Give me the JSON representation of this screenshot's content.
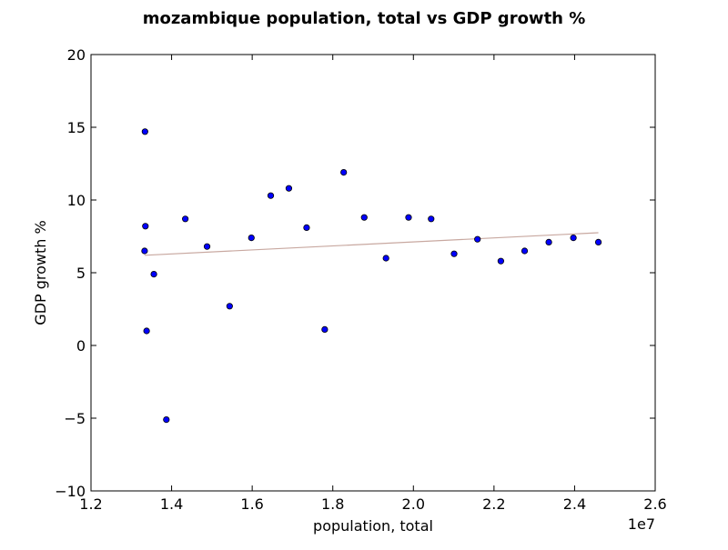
{
  "chart_data": {
    "type": "scatter",
    "title": "mozambique population, total vs GDP growth %",
    "xlabel": "population, total",
    "ylabel": "GDP growth %",
    "x_multiplier_label": "1e7",
    "xlim": [
      12000000,
      26000000
    ],
    "ylim": [
      -10,
      20
    ],
    "x_ticks": [
      12000000,
      14000000,
      16000000,
      18000000,
      20000000,
      22000000,
      24000000,
      26000000
    ],
    "x_tick_labels": [
      "1.2",
      "1.4",
      "1.6",
      "1.8",
      "2.0",
      "2.2",
      "2.4",
      "2.6"
    ],
    "y_ticks": [
      -10,
      -5,
      0,
      5,
      10,
      15,
      20
    ],
    "y_tick_labels": [
      "−10",
      "−5",
      "0",
      "5",
      "10",
      "15",
      "20"
    ],
    "grid": false,
    "marker_color": "#0000ff",
    "trend_color": "#c8a8a0",
    "points": [
      {
        "x": 13340000,
        "y": 14.7
      },
      {
        "x": 13350000,
        "y": 8.2
      },
      {
        "x": 13330000,
        "y": 6.5
      },
      {
        "x": 13380000,
        "y": 1.0
      },
      {
        "x": 13560000,
        "y": 4.9
      },
      {
        "x": 13870000,
        "y": -5.1
      },
      {
        "x": 14340000,
        "y": 8.7
      },
      {
        "x": 14880000,
        "y": 6.8
      },
      {
        "x": 15440000,
        "y": 2.7
      },
      {
        "x": 15980000,
        "y": 7.4
      },
      {
        "x": 16460000,
        "y": 10.3
      },
      {
        "x": 16910000,
        "y": 10.8
      },
      {
        "x": 17350000,
        "y": 8.1
      },
      {
        "x": 17800000,
        "y": 1.1
      },
      {
        "x": 18270000,
        "y": 11.9
      },
      {
        "x": 18780000,
        "y": 8.8
      },
      {
        "x": 19320000,
        "y": 6.0
      },
      {
        "x": 19880000,
        "y": 8.8
      },
      {
        "x": 20440000,
        "y": 8.7
      },
      {
        "x": 21010000,
        "y": 6.3
      },
      {
        "x": 21590000,
        "y": 7.3
      },
      {
        "x": 22170000,
        "y": 5.8
      },
      {
        "x": 22760000,
        "y": 6.5
      },
      {
        "x": 23360000,
        "y": 7.1
      },
      {
        "x": 23970000,
        "y": 7.4
      },
      {
        "x": 24590000,
        "y": 7.1
      }
    ],
    "trend_line": {
      "x": [
        13330000,
        24590000
      ],
      "y": [
        6.2,
        7.75
      ]
    }
  }
}
